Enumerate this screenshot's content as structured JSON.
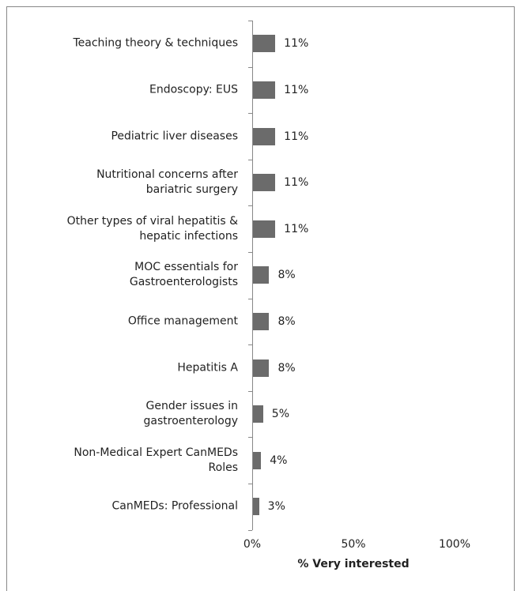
{
  "chart_data": {
    "type": "bar",
    "orientation": "horizontal",
    "categories": [
      "Teaching theory & techniques",
      "Endoscopy: EUS",
      "Pediatric liver diseases",
      "Nutritional concerns after\nbariatric surgery",
      "Other types of viral hepatitis &\nhepatic infections",
      "MOC essentials for\nGastroenterologists",
      "Office management",
      "Hepatitis A",
      "Gender issues in\ngastroenterology",
      "Non-Medical Expert  CanMEDs\nRoles",
      "CanMEDs: Professional"
    ],
    "values": [
      11,
      11,
      11,
      11,
      11,
      8,
      8,
      8,
      5,
      4,
      3
    ],
    "value_labels": [
      "11%",
      "11%",
      "11%",
      "11%",
      "11%",
      "8%",
      "8%",
      "8%",
      "5%",
      "4%",
      "3%"
    ],
    "color": "#6b6b6b",
    "xlabel": "% Very interested",
    "xlim": [
      0,
      100
    ],
    "xticks": [
      {
        "value": 0,
        "label": "0%"
      },
      {
        "value": 50,
        "label": "50%"
      },
      {
        "value": 100,
        "label": "100%"
      }
    ]
  }
}
